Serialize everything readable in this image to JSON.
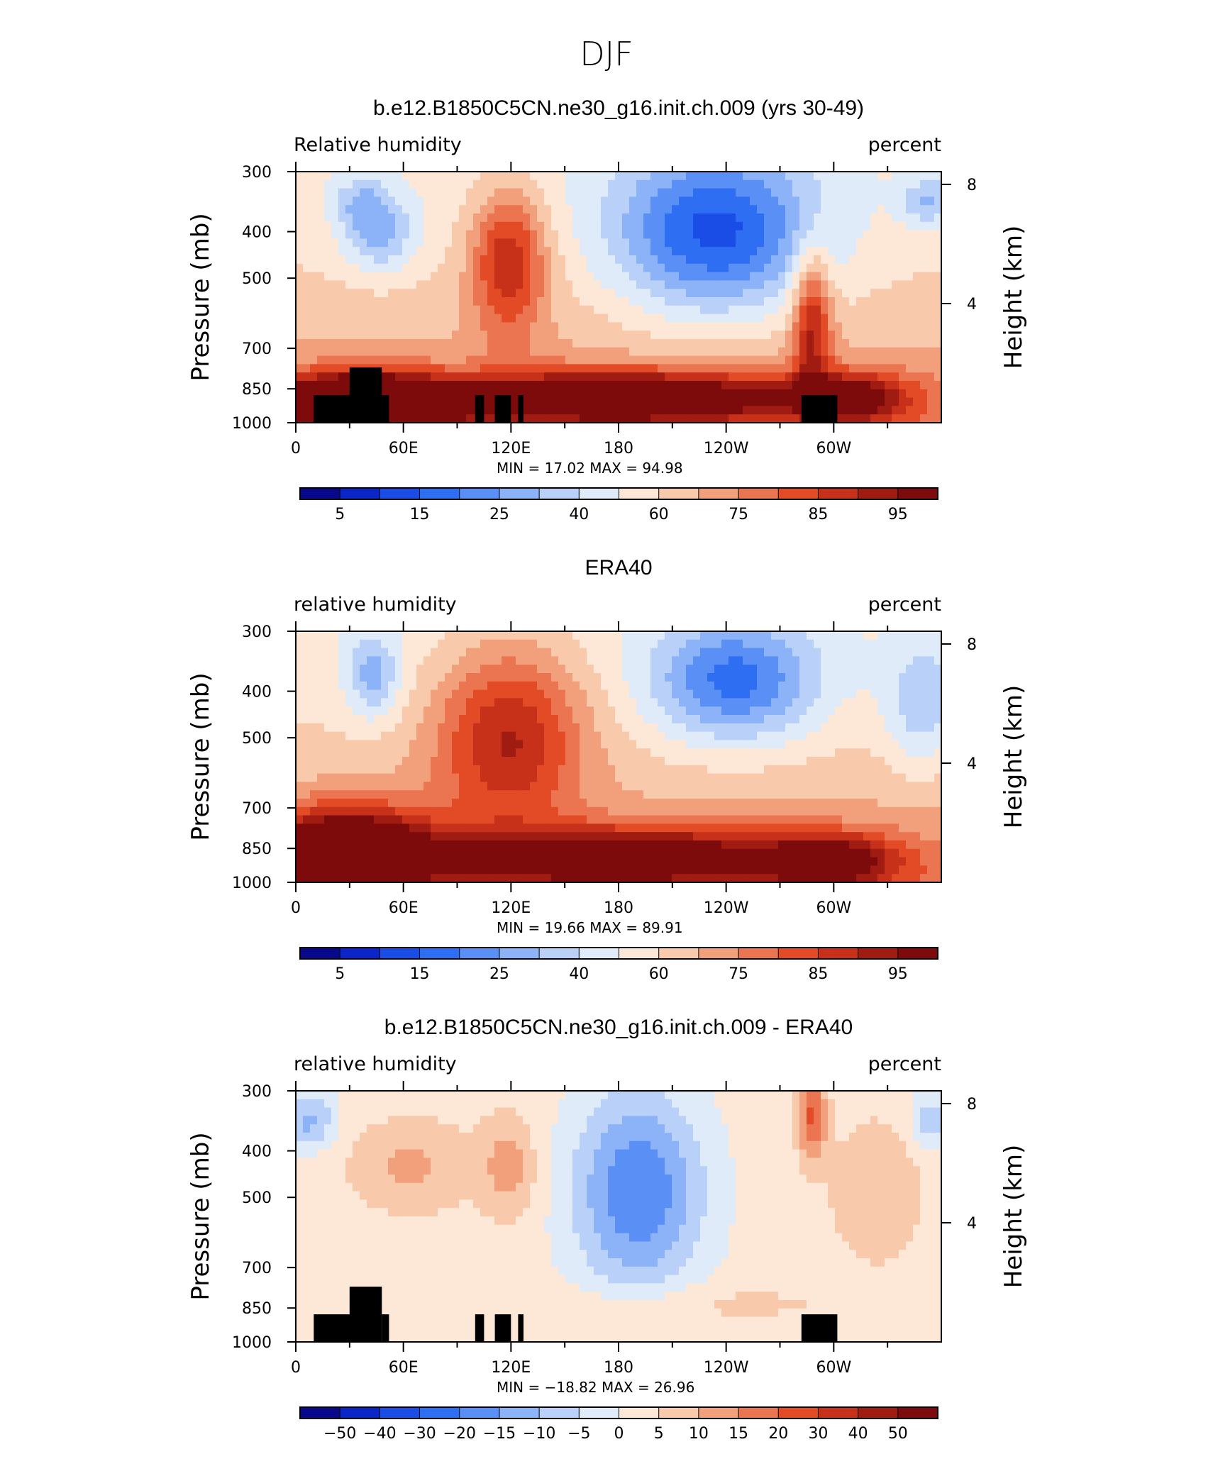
{
  "figure": {
    "title": "DJF"
  },
  "palettes": {
    "levels": [
      "#08088c",
      "#0c25c8",
      "#1a4de6",
      "#2e6ef2",
      "#5a8ff5",
      "#8cb2f7",
      "#b9d0f9",
      "#e0ebfa",
      "#fde8d8",
      "#f9c9ac",
      "#f2a07c",
      "#eb7550",
      "#e34a26",
      "#c7311a",
      "#a01c12",
      "#7e0b0b"
    ]
  },
  "chart_data": [
    {
      "type": "contour",
      "title": "b.e12.B1850C5CN.ne30_g16.init.ch.009 (yrs 30-49)",
      "variable_label": "Relative humidity",
      "units_label": "percent",
      "ylabel": "Pressure (mb)",
      "ylabel_right": "Height (km)",
      "y_ticks": [
        "300",
        "400",
        "500",
        "700",
        "850",
        "1000"
      ],
      "y_right_ticks": [
        "8",
        "4"
      ],
      "x_ticks": [
        "0",
        "60E",
        "120E",
        "180",
        "120W",
        "60W"
      ],
      "min_label": "MIN =",
      "min_value": "17.02",
      "max_label": "MAX =",
      "max_value": "94.98",
      "colorbar_labels": [
        "5",
        "15",
        "25",
        "40",
        "60",
        "75",
        "85",
        "95"
      ],
      "terrain": true,
      "fields": [
        {
          "lon": 0.1,
          "p": 0.93,
          "v": 12,
          "s": 0.09,
          "ps": 0.08
        },
        {
          "lon": 0.13,
          "p": 0.25,
          "v": -3,
          "s": 0.04,
          "ps": 0.11
        },
        {
          "lon": 0.1,
          "p": 0.12,
          "v": -2,
          "s": 0.03,
          "ps": 0.07
        },
        {
          "lon": 0.33,
          "p": 0.35,
          "v": 5,
          "s": 0.04,
          "ps": 0.2
        },
        {
          "lon": 0.5,
          "p": 0.9,
          "v": 8,
          "s": 0.2,
          "ps": 0.07
        },
        {
          "lon": 0.65,
          "p": 0.25,
          "v": -6,
          "s": 0.11,
          "ps": 0.23
        },
        {
          "lon": 0.8,
          "p": 0.6,
          "v": 5,
          "s": 0.02,
          "ps": 0.2
        },
        {
          "lon": 0.86,
          "p": 0.9,
          "v": 5,
          "s": 0.06,
          "ps": 0.07
        },
        {
          "lon": 0.98,
          "p": 0.12,
          "v": -2.5,
          "s": 0.03,
          "ps": 0.07
        }
      ]
    },
    {
      "type": "contour",
      "title": "ERA40",
      "variable_label": "relative humidity",
      "units_label": "percent",
      "ylabel": "Pressure (mb)",
      "ylabel_right": "Height (km)",
      "y_ticks": [
        "300",
        "400",
        "500",
        "700",
        "850",
        "1000"
      ],
      "y_right_ticks": [
        "8",
        "4"
      ],
      "x_ticks": [
        "0",
        "60E",
        "120E",
        "180",
        "120W",
        "60W"
      ],
      "min_label": "MIN =",
      "min_value": "19.66",
      "max_label": "MAX =",
      "max_value": "89.91",
      "colorbar_labels": [
        "5",
        "15",
        "25",
        "40",
        "60",
        "75",
        "85",
        "95"
      ],
      "terrain": false,
      "fields": [
        {
          "lon": 0.08,
          "p": 0.88,
          "v": 9,
          "s": 0.09,
          "ps": 0.12
        },
        {
          "lon": 0.12,
          "p": 0.18,
          "v": -3,
          "s": 0.03,
          "ps": 0.12
        },
        {
          "lon": 0.33,
          "p": 0.4,
          "v": 5,
          "s": 0.08,
          "ps": 0.25
        },
        {
          "lon": 0.5,
          "p": 0.9,
          "v": 7,
          "s": 0.2,
          "ps": 0.08
        },
        {
          "lon": 0.68,
          "p": 0.2,
          "v": -5,
          "s": 0.09,
          "ps": 0.17
        },
        {
          "lon": 0.83,
          "p": 0.92,
          "v": 5,
          "s": 0.07,
          "ps": 0.08
        },
        {
          "lon": 0.97,
          "p": 0.3,
          "v": -2.5,
          "s": 0.04,
          "ps": 0.18
        }
      ]
    },
    {
      "type": "contour",
      "title": "b.e12.B1850C5CN.ne30_g16.init.ch.009 - ERA40",
      "variable_label": "relative humidity",
      "units_label": "percent",
      "ylabel": "Pressure (mb)",
      "ylabel_right": "Height (km)",
      "y_ticks": [
        "300",
        "400",
        "500",
        "700",
        "850",
        "1000"
      ],
      "y_right_ticks": [
        "8",
        "4"
      ],
      "x_ticks": [
        "0",
        "60E",
        "120E",
        "180",
        "120W",
        "60W"
      ],
      "min_label": "MIN =",
      "min_value": "−18.82",
      "max_label": "MAX =",
      "max_value": "26.96",
      "colorbar_labels": [
        "−50",
        "−40",
        "−30",
        "−20",
        "−15",
        "−10",
        "−5",
        "0",
        "5",
        "10",
        "15",
        "20",
        "30",
        "40",
        "50"
      ],
      "terrain": true,
      "fields": [
        {
          "lon": 0.02,
          "p": 0.12,
          "v": -2.5,
          "s": 0.03,
          "ps": 0.08
        },
        {
          "lon": 0.18,
          "p": 0.3,
          "v": 1.6,
          "s": 0.07,
          "ps": 0.13
        },
        {
          "lon": 0.33,
          "p": 0.3,
          "v": 1.8,
          "s": 0.03,
          "ps": 0.15
        },
        {
          "lon": 0.53,
          "p": 0.4,
          "v": -4,
          "s": 0.07,
          "ps": 0.28
        },
        {
          "lon": 0.8,
          "p": 0.1,
          "v": 3.5,
          "s": 0.015,
          "ps": 0.12
        },
        {
          "lon": 0.9,
          "p": 0.4,
          "v": 1.4,
          "s": 0.05,
          "ps": 0.2
        },
        {
          "lon": 0.98,
          "p": 0.12,
          "v": -2,
          "s": 0.02,
          "ps": 0.08
        },
        {
          "lon": 0.6,
          "p": 0.85,
          "v": 0.8,
          "s": 0.2,
          "ps": 0.06
        }
      ]
    }
  ]
}
